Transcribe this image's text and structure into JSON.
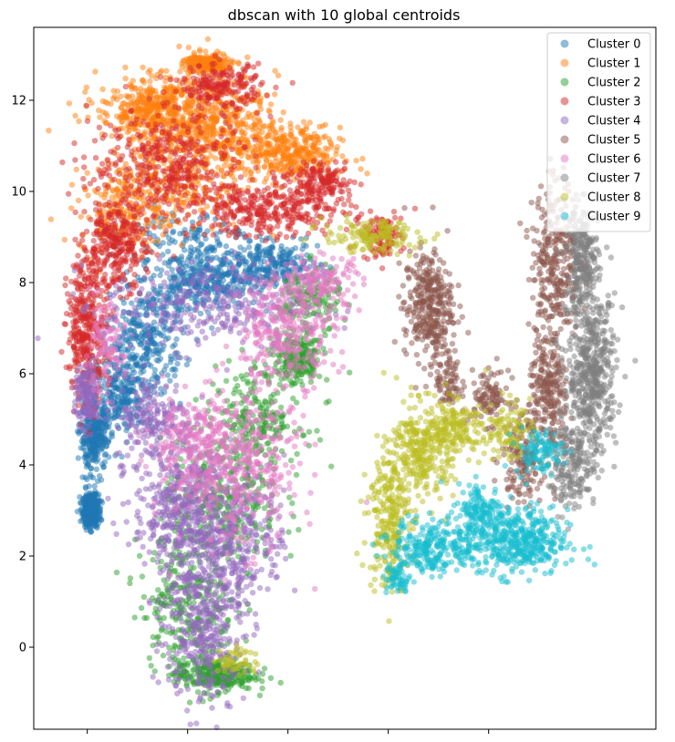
{
  "chart_data": {
    "type": "scatter",
    "title": "dbscan with 10 global centroids",
    "xlabel": "",
    "ylabel": "",
    "xlim": [
      -4.6,
      14.0
    ],
    "ylim": [
      -1.8,
      13.6
    ],
    "yticks": [
      0,
      2,
      4,
      6,
      8,
      10,
      12
    ],
    "xticks_unlabeled": [
      -3,
      0,
      3,
      6,
      9
    ],
    "grid": false,
    "legend_position": "top-right",
    "marker_alpha": 0.5,
    "series": [
      {
        "name": "Cluster 0",
        "color": "#1f77b4",
        "regions": [
          [
            -2.9,
            3.0,
            0.2,
            0.3,
            450
          ],
          [
            -2.8,
            4.6,
            0.35,
            0.6,
            300
          ],
          [
            -2.0,
            5.6,
            0.8,
            0.7,
            250
          ],
          [
            -1.2,
            6.8,
            0.9,
            1.0,
            300
          ],
          [
            0.5,
            8.0,
            1.3,
            0.5,
            300
          ],
          [
            2.5,
            8.4,
            1.2,
            0.4,
            250
          ],
          [
            0.0,
            9.0,
            1.5,
            0.5,
            120
          ]
        ]
      },
      {
        "name": "Cluster 1",
        "color": "#ff7f0e",
        "regions": [
          [
            0.6,
            12.8,
            0.6,
            0.2,
            200
          ],
          [
            -1.0,
            11.8,
            1.4,
            0.6,
            450
          ],
          [
            1.0,
            11.5,
            1.4,
            0.8,
            400
          ],
          [
            3.0,
            10.8,
            1.3,
            0.5,
            350
          ],
          [
            -0.5,
            10.2,
            1.8,
            0.9,
            300
          ],
          [
            -2.0,
            9.5,
            1.0,
            0.7,
            150
          ]
        ]
      },
      {
        "name": "Cluster 2",
        "color": "#2ca02c",
        "regions": [
          [
            0.8,
            -0.6,
            1.0,
            0.3,
            300
          ],
          [
            0.0,
            1.0,
            1.2,
            1.2,
            250
          ],
          [
            1.0,
            3.0,
            1.5,
            1.2,
            300
          ],
          [
            2.0,
            5.0,
            1.2,
            1.0,
            250
          ],
          [
            3.3,
            6.3,
            0.6,
            0.5,
            200
          ],
          [
            3.6,
            7.6,
            0.8,
            0.6,
            150
          ]
        ]
      },
      {
        "name": "Cluster 3",
        "color": "#d62728",
        "regions": [
          [
            -3.0,
            7.0,
            0.5,
            1.3,
            350
          ],
          [
            -2.2,
            8.8,
            0.8,
            0.8,
            300
          ],
          [
            -0.5,
            10.6,
            2.0,
            1.0,
            400
          ],
          [
            1.0,
            12.3,
            1.0,
            0.4,
            200
          ],
          [
            2.5,
            9.6,
            2.0,
            0.5,
            350
          ],
          [
            4.0,
            10.2,
            0.8,
            0.3,
            150
          ],
          [
            5.8,
            9.0,
            0.5,
            0.4,
            100
          ]
        ]
      },
      {
        "name": "Cluster 4",
        "color": "#9467bd",
        "regions": [
          [
            0.5,
            0.5,
            1.0,
            1.5,
            400
          ],
          [
            -0.2,
            3.0,
            1.2,
            1.2,
            450
          ],
          [
            1.5,
            2.5,
            1.2,
            1.2,
            300
          ],
          [
            -3.0,
            5.5,
            0.3,
            0.6,
            150
          ],
          [
            0.5,
            7.5,
            2.5,
            0.8,
            300
          ],
          [
            -1.0,
            5.0,
            1.0,
            0.8,
            200
          ]
        ]
      },
      {
        "name": "Cluster 5",
        "color": "#8c564b",
        "regions": [
          [
            7.2,
            7.5,
            0.6,
            1.0,
            350
          ],
          [
            7.8,
            5.8,
            0.3,
            0.6,
            80
          ],
          [
            11.0,
            8.5,
            0.6,
            1.5,
            300
          ],
          [
            10.8,
            5.5,
            0.5,
            1.2,
            250
          ],
          [
            10.0,
            4.2,
            0.5,
            0.8,
            150
          ],
          [
            9.0,
            5.5,
            0.5,
            0.5,
            100
          ]
        ]
      },
      {
        "name": "Cluster 6",
        "color": "#e377c2",
        "regions": [
          [
            1.5,
            4.0,
            1.5,
            1.5,
            450
          ],
          [
            3.0,
            7.0,
            1.2,
            1.0,
            300
          ],
          [
            0.0,
            4.5,
            1.0,
            0.8,
            150
          ],
          [
            -2.5,
            6.5,
            0.5,
            0.8,
            100
          ],
          [
            4.0,
            8.0,
            1.0,
            0.5,
            150
          ]
        ]
      },
      {
        "name": "Cluster 7",
        "color": "#7f7f7f",
        "regions": [
          [
            12.1,
            6.0,
            0.6,
            1.4,
            500
          ],
          [
            11.8,
            8.5,
            0.4,
            1.0,
            250
          ],
          [
            11.5,
            4.0,
            0.6,
            0.8,
            200
          ]
        ]
      },
      {
        "name": "Cluster 8",
        "color": "#bcbd22",
        "regions": [
          [
            6.0,
            2.8,
            0.5,
            1.3,
            250
          ],
          [
            7.0,
            4.3,
            0.8,
            0.9,
            300
          ],
          [
            8.0,
            4.8,
            0.8,
            0.5,
            150
          ],
          [
            5.5,
            9.0,
            1.2,
            0.3,
            150
          ],
          [
            9.5,
            4.8,
            0.6,
            0.5,
            100
          ],
          [
            1.5,
            -0.3,
            0.5,
            0.3,
            50
          ]
        ]
      },
      {
        "name": "Cluster 9",
        "color": "#17becf",
        "regions": [
          [
            7.3,
            2.2,
            1.0,
            0.5,
            250
          ],
          [
            9.8,
            2.3,
            1.3,
            0.6,
            450
          ],
          [
            8.8,
            3.0,
            0.6,
            0.5,
            150
          ],
          [
            10.5,
            4.3,
            0.6,
            0.4,
            100
          ],
          [
            6.3,
            1.5,
            0.3,
            0.3,
            60
          ]
        ]
      }
    ]
  }
}
